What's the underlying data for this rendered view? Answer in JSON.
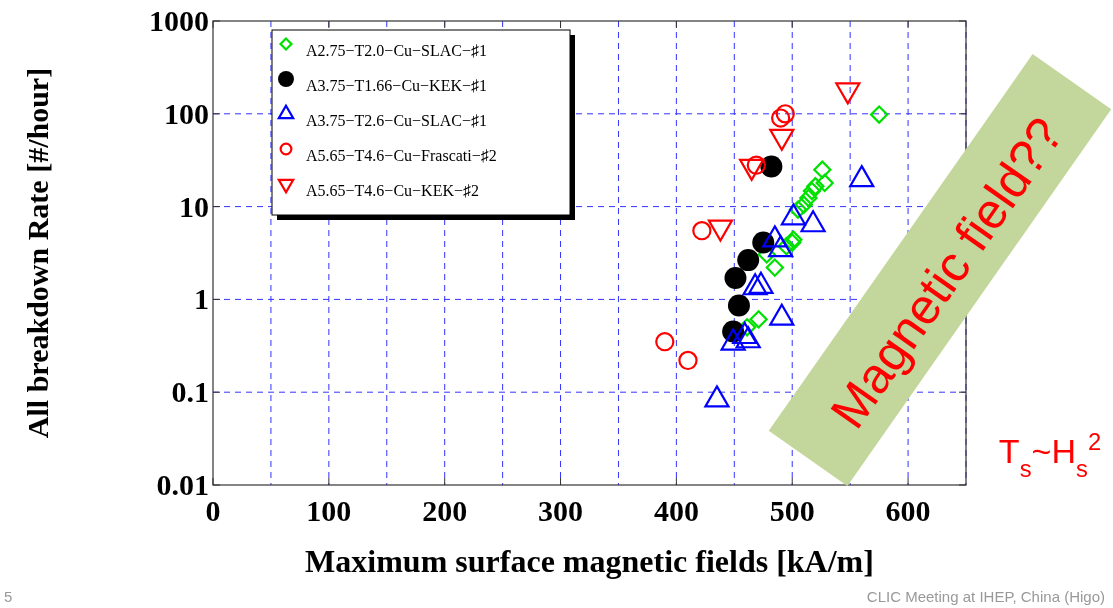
{
  "chart_data": {
    "type": "scatter",
    "xlabel": "Maximum surface magnetic fields [kA/m]",
    "ylabel": "All breakdown Rate [#/hour]",
    "xlim": [
      0,
      650
    ],
    "xticks": [
      0,
      100,
      200,
      300,
      400,
      500,
      600
    ],
    "ylim": [
      0.01,
      1000
    ],
    "yticks": [
      0.01,
      0.1,
      1,
      10,
      100,
      1000
    ],
    "log": true,
    "grid": true,
    "legend": "top left",
    "series": [
      {
        "name": "A2.75−T2.0−Cu−SLAC−♯1",
        "color": "#00e000",
        "marker": "diamond",
        "x": [
          575,
          526,
          528,
          520,
          517,
          514,
          510,
          505,
          501,
          500,
          495,
          478,
          485,
          471,
          461
        ],
        "values": [
          98,
          25,
          18,
          16.6,
          14.7,
          12.4,
          10.5,
          9.3,
          4.4,
          4.1,
          3.75,
          3.05,
          2.2,
          0.61,
          0.5
        ]
      },
      {
        "name": "A3.75−T1.66−Cu−KEK−♯1",
        "color": "#000000",
        "marker": "circle-filled",
        "x": [
          482,
          475,
          462,
          451,
          454,
          449
        ],
        "values": [
          27,
          4.1,
          2.65,
          1.7,
          0.86,
          0.45
        ]
      },
      {
        "name": "A3.75−T2.6−Cu−SLAC−♯1",
        "color": "#0000ff",
        "marker": "triangle",
        "x": [
          560,
          501,
          518,
          485,
          490,
          468,
          473,
          491,
          449,
          462,
          459,
          435
        ],
        "values": [
          19.6,
          7.6,
          6.4,
          4.4,
          3.45,
          1.34,
          1.39,
          0.63,
          0.34,
          0.36,
          0.4,
          0.083
        ]
      },
      {
        "name": "A5.65−T4.6−Cu−Frascati−♯2",
        "color": "#ff0000",
        "marker": "circle",
        "x": [
          490,
          494,
          469,
          422,
          390,
          410
        ],
        "values": [
          90,
          100,
          28,
          5.5,
          0.35,
          0.22
        ]
      },
      {
        "name": "A5.65−T4.6−Cu−KEK−♯2",
        "color": "#ff0000",
        "marker": "triangle-down",
        "x": [
          548,
          491,
          465,
          438
        ],
        "values": [
          180,
          57,
          27,
          6
        ]
      }
    ],
    "annotations": [
      "Magnetic field??",
      "T$_{s}$~H$_{s}$$^{2}$",
      "CLIC Meeting at IHEP, China (Higo)",
      "5"
    ]
  }
}
